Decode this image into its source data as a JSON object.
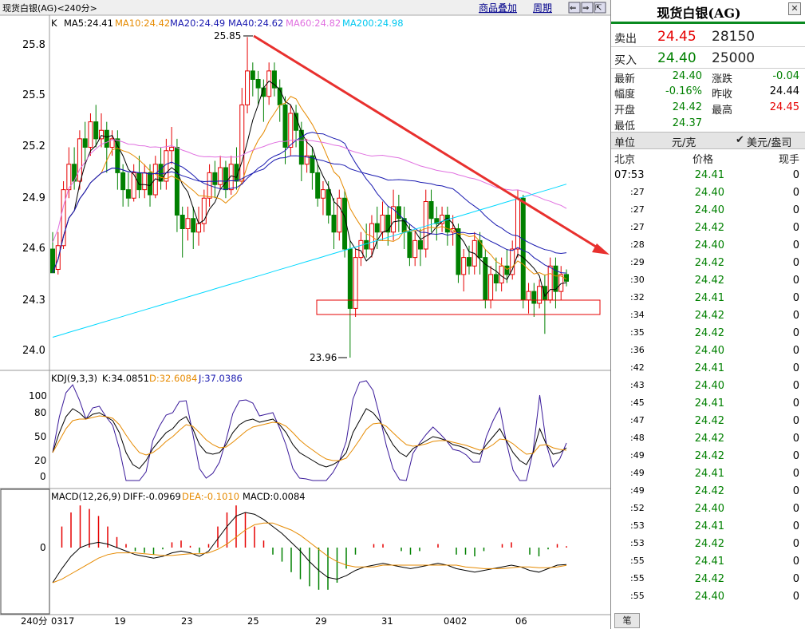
{
  "title_bar": {
    "label": "现货白银(AG)",
    "period": "<240分>"
  },
  "top_links": {
    "overlay": "商品叠加",
    "cycle": "周期"
  },
  "top_controls": {
    "back": "⇐",
    "forward": "⇒",
    "lock": "⇱"
  },
  "indicator_line": {
    "k": "K",
    "ma5": "MA5:24.41",
    "ma10": "MA10:24.42",
    "ma20": "MA20:24.49",
    "ma40": "MA40:24.62",
    "ma60": "MA60:24.82",
    "ma200": "MA200:24.98"
  },
  "price_axis": [
    "25.8",
    "25.5",
    "25.2",
    "24.9",
    "24.6",
    "24.3",
    "24.0"
  ],
  "annotations": {
    "high": "25.85",
    "low": "23.96"
  },
  "kdj": {
    "label": "KDJ(9,3,3)",
    "k": "K:34.0851",
    "d": "D:32.6084",
    "j": "J:37.0386",
    "axis": [
      "100",
      "80",
      "50",
      "20",
      "0"
    ]
  },
  "macd": {
    "label": "MACD(12,26,9)",
    "diff": "DIFF:-0.0969",
    "dea": "DEA:-0.1010",
    "macd": "MACD:0.0084",
    "axis": [
      "0"
    ]
  },
  "x_axis": {
    "period": "240分",
    "dates": [
      "0317",
      "19",
      "23",
      "25",
      "29",
      "31",
      "0402",
      "06"
    ]
  },
  "colors": {
    "ma5": "#000000",
    "ma10": "#e68a00",
    "ma20": "#1a1ab0",
    "ma40": "#1a1ab0",
    "ma60": "#e070e0",
    "ma200": "#00d8ff",
    "up": "#e60000",
    "down": "#008000",
    "trend": "#e8302e"
  },
  "chart_data": {
    "type": "candlestick",
    "ylim": [
      23.9,
      25.9
    ],
    "candles": [
      [
        24.6,
        24.46,
        24.7,
        24.48
      ],
      [
        24.48,
        24.62,
        24.7,
        24.45
      ],
      [
        24.62,
        24.95,
        25.0,
        24.6
      ],
      [
        24.95,
        25.1,
        25.2,
        24.9
      ],
      [
        25.1,
        25.0,
        25.2,
        24.95
      ],
      [
        25.0,
        25.25,
        25.3,
        24.95
      ],
      [
        25.25,
        25.2,
        25.35,
        25.1
      ],
      [
        25.2,
        25.35,
        25.4,
        25.15
      ],
      [
        25.35,
        25.25,
        25.45,
        25.2
      ],
      [
        25.25,
        25.3,
        25.4,
        25.2
      ],
      [
        25.3,
        25.2,
        25.35,
        25.05
      ],
      [
        25.2,
        25.25,
        25.3,
        25.15
      ],
      [
        25.25,
        25.05,
        25.3,
        24.95
      ],
      [
        25.05,
        24.95,
        25.1,
        24.85
      ],
      [
        24.95,
        24.9,
        25.05,
        24.85
      ],
      [
        24.9,
        25.05,
        25.1,
        24.88
      ],
      [
        25.05,
        24.95,
        25.15,
        24.9
      ],
      [
        24.95,
        25.05,
        25.1,
        24.9
      ],
      [
        25.05,
        24.92,
        25.1,
        24.85
      ],
      [
        24.92,
        25.1,
        25.15,
        24.9
      ],
      [
        25.1,
        25.0,
        25.2,
        24.95
      ],
      [
        25.0,
        25.18,
        25.25,
        24.95
      ],
      [
        25.18,
        25.2,
        25.32,
        25.1
      ],
      [
        25.2,
        24.8,
        25.25,
        24.7
      ],
      [
        24.8,
        24.72,
        24.85,
        24.55
      ],
      [
        24.72,
        24.78,
        24.85,
        24.65
      ],
      [
        24.78,
        24.7,
        24.85,
        24.6
      ],
      [
        24.7,
        24.75,
        24.85,
        24.62
      ],
      [
        24.75,
        24.9,
        24.95,
        24.7
      ],
      [
        24.9,
        25.05,
        25.1,
        24.85
      ],
      [
        25.05,
        24.98,
        25.12,
        24.9
      ],
      [
        24.98,
        25.08,
        25.15,
        24.95
      ],
      [
        25.08,
        24.95,
        25.12,
        24.9
      ],
      [
        24.95,
        25.1,
        25.15,
        24.92
      ],
      [
        25.1,
        25.0,
        25.2,
        24.95
      ],
      [
        25.0,
        25.45,
        25.55,
        24.98
      ],
      [
        25.45,
        25.65,
        25.85,
        25.4
      ],
      [
        25.65,
        25.6,
        25.7,
        25.5
      ],
      [
        25.6,
        25.55,
        25.65,
        25.45
      ],
      [
        25.55,
        25.5,
        25.6,
        25.35
      ],
      [
        25.5,
        25.65,
        25.7,
        25.45
      ],
      [
        25.65,
        25.55,
        25.7,
        25.5
      ],
      [
        25.55,
        25.45,
        25.6,
        25.35
      ],
      [
        25.45,
        25.2,
        25.5,
        25.1
      ],
      [
        25.2,
        25.4,
        25.45,
        25.15
      ],
      [
        25.4,
        25.3,
        25.45,
        25.2
      ],
      [
        25.3,
        25.1,
        25.35,
        25.0
      ],
      [
        25.1,
        25.15,
        25.25,
        25.05
      ],
      [
        25.15,
        25.05,
        25.2,
        24.95
      ],
      [
        25.05,
        24.9,
        25.1,
        24.85
      ],
      [
        24.9,
        24.95,
        25.0,
        24.8
      ],
      [
        24.95,
        24.8,
        25.0,
        24.75
      ],
      [
        24.8,
        24.7,
        24.9,
        24.6
      ],
      [
        24.7,
        24.9,
        24.95,
        24.65
      ],
      [
        24.9,
        24.6,
        24.95,
        24.55
      ],
      [
        24.6,
        24.25,
        24.65,
        23.96
      ],
      [
        24.25,
        24.55,
        24.6,
        24.2
      ],
      [
        24.55,
        24.65,
        24.7,
        24.5
      ],
      [
        24.65,
        24.6,
        24.75,
        24.55
      ],
      [
        24.6,
        24.75,
        24.8,
        24.55
      ],
      [
        24.75,
        24.7,
        24.85,
        24.6
      ],
      [
        24.7,
        24.8,
        24.88,
        24.65
      ],
      [
        24.8,
        24.7,
        24.85,
        24.62
      ],
      [
        24.7,
        24.85,
        24.95,
        24.65
      ],
      [
        24.85,
        24.78,
        24.92,
        24.7
      ],
      [
        24.78,
        24.7,
        24.85,
        24.6
      ],
      [
        24.7,
        24.55,
        24.75,
        24.5
      ],
      [
        24.55,
        24.65,
        24.7,
        24.5
      ],
      [
        24.65,
        24.6,
        24.72,
        24.5
      ],
      [
        24.6,
        24.88,
        24.95,
        24.55
      ],
      [
        24.88,
        24.78,
        24.95,
        24.7
      ],
      [
        24.78,
        24.75,
        24.85,
        24.65
      ],
      [
        24.75,
        24.8,
        24.85,
        24.7
      ],
      [
        24.8,
        24.7,
        24.85,
        24.62
      ],
      [
        24.7,
        24.72,
        24.8,
        24.62
      ],
      [
        24.72,
        24.45,
        24.75,
        24.4
      ],
      [
        24.45,
        24.55,
        24.6,
        24.35
      ],
      [
        24.55,
        24.5,
        24.62,
        24.45
      ],
      [
        24.5,
        24.65,
        24.7,
        24.45
      ],
      [
        24.65,
        24.55,
        24.7,
        24.45
      ],
      [
        24.55,
        24.3,
        24.6,
        24.25
      ],
      [
        24.3,
        24.45,
        24.5,
        24.25
      ],
      [
        24.45,
        24.4,
        24.55,
        24.35
      ],
      [
        24.4,
        24.5,
        24.55,
        24.35
      ],
      [
        24.5,
        24.45,
        24.6,
        24.4
      ],
      [
        24.45,
        24.6,
        24.65,
        24.42
      ],
      [
        24.6,
        24.9,
        24.95,
        24.55
      ],
      [
        24.9,
        24.3,
        24.92,
        24.25
      ],
      [
        24.3,
        24.35,
        24.4,
        24.22
      ],
      [
        24.35,
        24.28,
        24.4,
        24.2
      ],
      [
        24.28,
        24.38,
        24.42,
        24.25
      ],
      [
        24.38,
        24.3,
        24.45,
        24.1
      ],
      [
        24.3,
        24.5,
        24.55,
        24.28
      ],
      [
        24.5,
        24.35,
        24.55,
        24.25
      ],
      [
        24.35,
        24.45,
        24.5,
        24.3
      ],
      [
        24.45,
        24.41,
        24.48,
        24.38
      ]
    ],
    "kdj_k": [
      30,
      55,
      75,
      85,
      80,
      72,
      78,
      80,
      75,
      70,
      55,
      30,
      15,
      10,
      20,
      35,
      45,
      55,
      60,
      70,
      75,
      60,
      40,
      30,
      28,
      30,
      40,
      55,
      65,
      70,
      72,
      68,
      70,
      72,
      65,
      55,
      40,
      30,
      25,
      20,
      15,
      12,
      15,
      20,
      30,
      55,
      70,
      85,
      80,
      70,
      55,
      40,
      30,
      25,
      35,
      40,
      45,
      50,
      48,
      45,
      40,
      38,
      35,
      30,
      28,
      40,
      50,
      60,
      45,
      30,
      20,
      15,
      30,
      60,
      40,
      28,
      30,
      36
    ],
    "kdj_d": [
      30,
      45,
      60,
      70,
      72,
      72,
      74,
      76,
      75,
      73,
      65,
      52,
      40,
      30,
      27,
      30,
      36,
      44,
      50,
      58,
      65,
      63,
      55,
      46,
      40,
      36,
      37,
      43,
      50,
      57,
      62,
      64,
      66,
      68,
      67,
      63,
      55,
      46,
      39,
      33,
      27,
      22,
      20,
      20,
      23,
      34,
      46,
      59,
      66,
      67,
      63,
      55,
      47,
      40,
      38,
      39,
      41,
      44,
      45,
      45,
      43,
      41,
      39,
      36,
      33,
      35,
      40,
      47,
      46,
      41,
      34,
      28,
      29,
      39,
      40,
      36,
      34,
      33
    ],
    "kdj_j": [
      30,
      75,
      105,
      115,
      96,
      72,
      86,
      88,
      75,
      64,
      35,
      -14,
      -35,
      -30,
      6,
      45,
      63,
      77,
      80,
      94,
      95,
      54,
      10,
      -2,
      4,
      18,
      46,
      79,
      95,
      96,
      92,
      76,
      78,
      80,
      61,
      39,
      10,
      -2,
      -3,
      -6,
      -9,
      -8,
      5,
      20,
      44,
      97,
      118,
      137,
      108,
      76,
      39,
      10,
      -4,
      -5,
      29,
      42,
      53,
      62,
      54,
      45,
      34,
      32,
      27,
      18,
      18,
      50,
      70,
      86,
      43,
      8,
      -8,
      -11,
      32,
      102,
      40,
      12,
      22,
      42
    ],
    "macd_diff": [
      -0.2,
      -0.12,
      -0.05,
      0.0,
      0.02,
      0.03,
      0.02,
      0.0,
      -0.02,
      -0.04,
      -0.05,
      -0.06,
      -0.05,
      -0.03,
      -0.02,
      -0.03,
      -0.05,
      -0.02,
      0.05,
      0.12,
      0.18,
      0.2,
      0.19,
      0.16,
      0.12,
      0.08,
      0.03,
      -0.02,
      -0.08,
      -0.13,
      -0.17,
      -0.18,
      -0.16,
      -0.13,
      -0.11,
      -0.1,
      -0.09,
      -0.1,
      -0.11,
      -0.12,
      -0.11,
      -0.1,
      -0.09,
      -0.1,
      -0.12,
      -0.13,
      -0.14,
      -0.13,
      -0.12,
      -0.11,
      -0.1,
      -0.11,
      -0.13,
      -0.14,
      -0.12,
      -0.1,
      -0.097
    ],
    "macd_dea": [
      -0.2,
      -0.18,
      -0.15,
      -0.12,
      -0.09,
      -0.06,
      -0.04,
      -0.03,
      -0.03,
      -0.03,
      -0.035,
      -0.04,
      -0.045,
      -0.045,
      -0.04,
      -0.035,
      -0.035,
      -0.03,
      -0.01,
      0.02,
      0.06,
      0.1,
      0.13,
      0.14,
      0.14,
      0.12,
      0.1,
      0.07,
      0.03,
      -0.01,
      -0.05,
      -0.08,
      -0.1,
      -0.11,
      -0.11,
      -0.11,
      -0.1,
      -0.1,
      -0.1,
      -0.1,
      -0.1,
      -0.1,
      -0.1,
      -0.1,
      -0.1,
      -0.11,
      -0.115,
      -0.12,
      -0.12,
      -0.12,
      -0.115,
      -0.11,
      -0.11,
      -0.115,
      -0.115,
      -0.11,
      -0.101
    ]
  },
  "quote": {
    "title": "现货白银(AG)",
    "sell_label": "卖出",
    "sell_price": "24.45",
    "sell_vol": "28150",
    "buy_label": "买入",
    "buy_price": "24.40",
    "buy_vol": "25000",
    "rows": [
      {
        "l1": "最新",
        "v1": "24.40",
        "l2": "涨跌",
        "v2": "-0.04"
      },
      {
        "l1": "幅度",
        "v1": "-0.16%",
        "l2": "昨收",
        "v2": "24.44"
      },
      {
        "l1": "开盘",
        "v1": "24.42",
        "l2": "最高",
        "v2": "24.45"
      },
      {
        "l1": "最低",
        "v1": "24.37",
        "l2": "",
        "v2": ""
      }
    ],
    "unit_label": "单位",
    "unit_value": "元/克",
    "unit_alt": "美元/盎司",
    "tick_header": {
      "time": "北京",
      "price": "价格",
      "vol": "现手"
    },
    "ticks": [
      {
        "t": "07:53",
        "p": "24.41",
        "v": "0"
      },
      {
        "t": ":27",
        "p": "24.40",
        "v": "0"
      },
      {
        "t": ":27",
        "p": "24.40",
        "v": "0"
      },
      {
        "t": ":27",
        "p": "24.42",
        "v": "0"
      },
      {
        "t": ":28",
        "p": "24.40",
        "v": "0"
      },
      {
        "t": ":29",
        "p": "24.42",
        "v": "0"
      },
      {
        "t": ":30",
        "p": "24.42",
        "v": "0"
      },
      {
        "t": ":32",
        "p": "24.41",
        "v": "0"
      },
      {
        "t": ":34",
        "p": "24.42",
        "v": "0"
      },
      {
        "t": ":35",
        "p": "24.42",
        "v": "0"
      },
      {
        "t": ":36",
        "p": "24.40",
        "v": "0"
      },
      {
        "t": ":42",
        "p": "24.41",
        "v": "0"
      },
      {
        "t": ":43",
        "p": "24.40",
        "v": "0"
      },
      {
        "t": ":45",
        "p": "24.41",
        "v": "0"
      },
      {
        "t": ":47",
        "p": "24.42",
        "v": "0"
      },
      {
        "t": ":48",
        "p": "24.42",
        "v": "0"
      },
      {
        "t": ":49",
        "p": "24.42",
        "v": "0"
      },
      {
        "t": ":49",
        "p": "24.41",
        "v": "0"
      },
      {
        "t": ":49",
        "p": "24.42",
        "v": "0"
      },
      {
        "t": ":52",
        "p": "24.40",
        "v": "0"
      },
      {
        "t": ":53",
        "p": "24.41",
        "v": "0"
      },
      {
        "t": ":53",
        "p": "24.42",
        "v": "0"
      },
      {
        "t": ":55",
        "p": "24.41",
        "v": "0"
      },
      {
        "t": ":55",
        "p": "24.42",
        "v": "0"
      },
      {
        "t": ":55",
        "p": "24.40",
        "v": "0"
      }
    ],
    "bottom_tab": "笔"
  }
}
